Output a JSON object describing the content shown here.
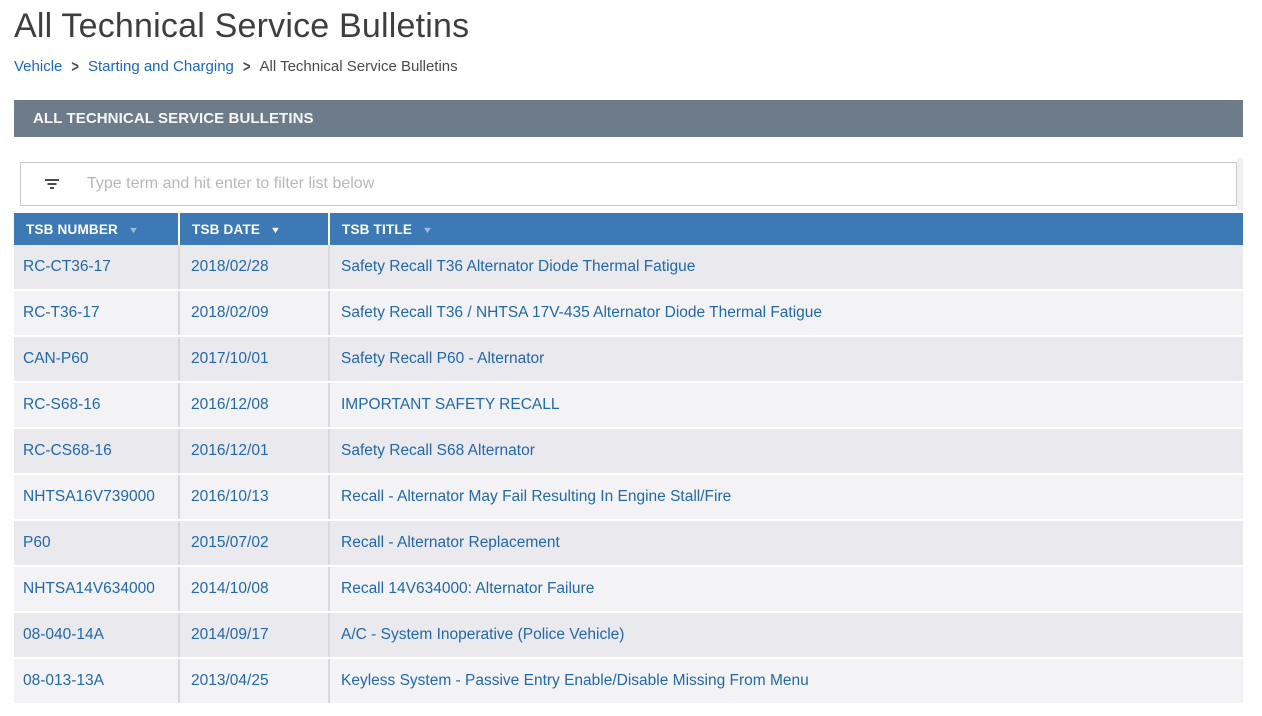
{
  "page": {
    "title": "All Technical Service Bulletins"
  },
  "breadcrumb": {
    "separator": ">",
    "items": [
      {
        "label": "Vehicle"
      },
      {
        "label": "Starting and Charging"
      },
      {
        "label": "All Technical Service Bulletins"
      }
    ]
  },
  "section": {
    "header": "ALL TECHNICAL SERVICE BULLETINS"
  },
  "filter": {
    "icon": "filter-list-icon",
    "placeholder": "Type term and hit enter to filter list below",
    "value": ""
  },
  "icons": {
    "caret_down_glyph": "▼"
  },
  "table": {
    "columns": [
      {
        "label": "TSB NUMBER",
        "sort_icon": "caret-down",
        "sort_active": false
      },
      {
        "label": "TSB DATE",
        "sort_icon": "caret-down",
        "sort_active": true
      },
      {
        "label": "TSB TITLE",
        "sort_icon": "caret-down",
        "sort_active": false
      }
    ],
    "rows": [
      {
        "number": "RC-CT36-17",
        "date": "2018/02/28",
        "title": "Safety Recall T36 Alternator Diode Thermal Fatigue"
      },
      {
        "number": "RC-T36-17",
        "date": "2018/02/09",
        "title": "Safety Recall T36 / NHTSA 17V-435 Alternator Diode Thermal Fatigue"
      },
      {
        "number": "CAN-P60",
        "date": "2017/10/01",
        "title": "Safety Recall P60 - Alternator"
      },
      {
        "number": "RC-S68-16",
        "date": "2016/12/08",
        "title": "IMPORTANT SAFETY RECALL"
      },
      {
        "number": "RC-CS68-16",
        "date": "2016/12/01",
        "title": "Safety Recall S68 Alternator"
      },
      {
        "number": "NHTSA16V739000",
        "date": "2016/10/13",
        "title": "Recall - Alternator May Fail Resulting In Engine Stall/Fire"
      },
      {
        "number": "P60",
        "date": "2015/07/02",
        "title": "Recall - Alternator Replacement"
      },
      {
        "number": "NHTSA14V634000",
        "date": "2014/10/08",
        "title": "Recall 14V634000: Alternator Failure"
      },
      {
        "number": "08-040-14A",
        "date": "2014/09/17",
        "title": "A/C - System Inoperative (Police Vehicle)"
      },
      {
        "number": "08-013-13A",
        "date": "2013/04/25",
        "title": "Keyless System - Passive Entry Enable/Disable Missing From Menu"
      }
    ]
  },
  "colors": {
    "section_bar": "#6e7b89",
    "table_header": "#3d79b4",
    "link": "#2268ab",
    "breadcrumb_link": "#1a66c2",
    "row_odd": "#e9e9ee",
    "row_even": "#f3f3f6"
  }
}
